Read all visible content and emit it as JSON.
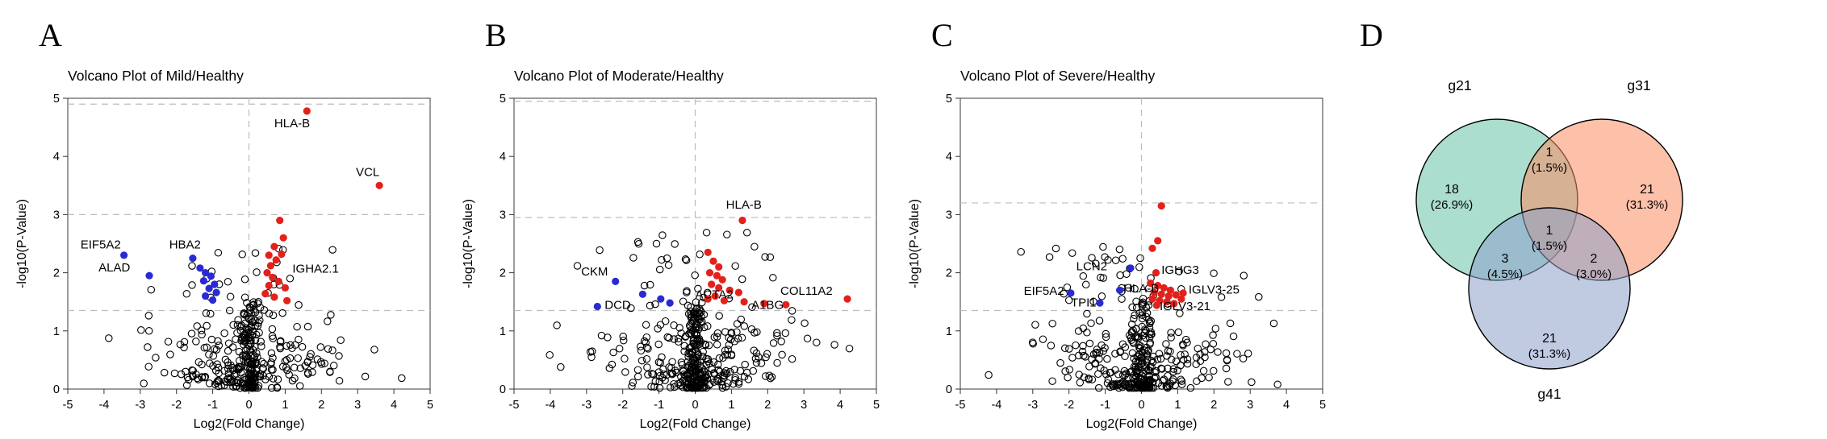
{
  "chart_data": [
    {
      "type": "scatter",
      "subtype": "volcano",
      "label": "A",
      "title": "Volcano Plot of Mild/Healthy",
      "xlabel": "Log2(Fold Change)",
      "ylabel": "-log10(P-Value)",
      "xlim": [
        -5,
        5
      ],
      "ylim": [
        0,
        5
      ],
      "xticks": [
        -5,
        -4,
        -3,
        -2,
        -1,
        0,
        1,
        2,
        3,
        4,
        5
      ],
      "yticks": [
        0,
        1,
        2,
        3,
        4,
        5
      ],
      "threshold_lines_y": [
        4.9,
        3.0,
        1.35
      ],
      "threshold_line_x": 0,
      "colors": {
        "up": "#e3211b",
        "down": "#2a2ad4",
        "background": "#000000",
        "grid": "#bdbdbd"
      },
      "up_points": [
        [
          1.6,
          4.78
        ],
        [
          3.6,
          3.5
        ],
        [
          0.85,
          2.9
        ],
        [
          0.95,
          2.6
        ],
        [
          0.7,
          2.45
        ],
        [
          0.9,
          2.32
        ],
        [
          0.55,
          2.3
        ],
        [
          0.75,
          2.22
        ],
        [
          0.6,
          2.12
        ],
        [
          0.5,
          2.0
        ],
        [
          0.65,
          1.92
        ],
        [
          0.82,
          1.85
        ],
        [
          0.55,
          1.78
        ],
        [
          1.0,
          1.74
        ],
        [
          0.45,
          1.64
        ],
        [
          0.7,
          1.58
        ],
        [
          1.05,
          1.52
        ]
      ],
      "down_points": [
        [
          -3.45,
          2.3
        ],
        [
          -1.55,
          2.25
        ],
        [
          -2.75,
          1.95
        ],
        [
          -1.35,
          2.08
        ],
        [
          -1.2,
          2.0
        ],
        [
          -1.05,
          1.94
        ],
        [
          -1.25,
          1.86
        ],
        [
          -0.95,
          1.8
        ],
        [
          -1.1,
          1.73
        ],
        [
          -0.9,
          1.66
        ],
        [
          -1.2,
          1.6
        ],
        [
          -1.0,
          1.53
        ]
      ],
      "gene_labels": [
        {
          "text": "HLA-B",
          "x": 0.7,
          "y": 4.5,
          "anchor": "start"
        },
        {
          "text": "VCL",
          "x": 2.95,
          "y": 3.66,
          "anchor": "start"
        },
        {
          "text": "EIF5A2",
          "x": -4.65,
          "y": 2.42,
          "anchor": "start"
        },
        {
          "text": "HBA2",
          "x": -2.2,
          "y": 2.42,
          "anchor": "start"
        },
        {
          "text": "ALAD",
          "x": -4.15,
          "y": 2.02,
          "anchor": "start"
        },
        {
          "text": "IGHA2.1",
          "x": 1.2,
          "y": 2.0,
          "anchor": "start"
        }
      ],
      "background": {
        "count": 380,
        "seed": 7,
        "ymax": 2.45
      }
    },
    {
      "type": "scatter",
      "subtype": "volcano",
      "label": "B",
      "title": "Volcano Plot of Moderate/Healthy",
      "xlabel": "Log2(Fold Change)",
      "ylabel": "-log10(P-Value)",
      "xlim": [
        -5,
        5
      ],
      "ylim": [
        0,
        5
      ],
      "xticks": [
        -5,
        -4,
        -3,
        -2,
        -1,
        0,
        1,
        2,
        3,
        4,
        5
      ],
      "yticks": [
        0,
        1,
        2,
        3,
        4,
        5
      ],
      "threshold_lines_y": [
        4.95,
        2.95,
        1.35
      ],
      "threshold_line_x": 0,
      "colors": {
        "up": "#e3211b",
        "down": "#2a2ad4",
        "background": "#000000",
        "grid": "#bdbdbd"
      },
      "up_points": [
        [
          1.3,
          2.9
        ],
        [
          0.35,
          2.35
        ],
        [
          0.5,
          2.2
        ],
        [
          0.65,
          2.1
        ],
        [
          0.4,
          2.0
        ],
        [
          0.6,
          1.95
        ],
        [
          0.75,
          1.88
        ],
        [
          0.45,
          1.8
        ],
        [
          0.65,
          1.74
        ],
        [
          0.95,
          1.7
        ],
        [
          1.2,
          1.66
        ],
        [
          0.55,
          1.6
        ],
        [
          0.35,
          1.55
        ],
        [
          0.8,
          1.52
        ],
        [
          1.35,
          1.5
        ],
        [
          1.9,
          1.47
        ],
        [
          2.5,
          1.45
        ],
        [
          4.2,
          1.55
        ]
      ],
      "down_points": [
        [
          -2.2,
          1.85
        ],
        [
          -1.45,
          1.63
        ],
        [
          -0.95,
          1.55
        ],
        [
          -2.7,
          1.42
        ],
        [
          -0.7,
          1.48
        ]
      ],
      "gene_labels": [
        {
          "text": "HLA-B",
          "x": 0.85,
          "y": 3.1,
          "anchor": "start"
        },
        {
          "text": "CKM",
          "x": -3.15,
          "y": 1.95,
          "anchor": "start"
        },
        {
          "text": "ACTA2",
          "x": 0.0,
          "y": 1.56,
          "anchor": "start"
        },
        {
          "text": "DCD",
          "x": -2.5,
          "y": 1.38,
          "anchor": "start"
        },
        {
          "text": "COL11A2",
          "x": 2.35,
          "y": 1.62,
          "anchor": "start"
        },
        {
          "text": "A1BG",
          "x": 1.55,
          "y": 1.38,
          "anchor": "start"
        }
      ],
      "background": {
        "count": 420,
        "seed": 13,
        "ymax": 2.75
      }
    },
    {
      "type": "scatter",
      "subtype": "volcano",
      "label": "C",
      "title": "Volcano Plot of Severe/Healthy",
      "xlabel": "Log2(Fold Change)",
      "ylabel": "-log10(P-Value)",
      "xlim": [
        -5,
        5
      ],
      "ylim": [
        0,
        5
      ],
      "xticks": [
        -5,
        -4,
        -3,
        -2,
        -1,
        0,
        1,
        2,
        3,
        4,
        5
      ],
      "yticks": [
        0,
        1,
        2,
        3,
        4,
        5
      ],
      "threshold_lines_y": [
        3.2,
        1.35
      ],
      "threshold_line_x": 0,
      "colors": {
        "up": "#e3211b",
        "down": "#2a2ad4",
        "background": "#000000",
        "grid": "#bdbdbd"
      },
      "up_points": [
        [
          0.55,
          3.15
        ],
        [
          0.45,
          2.55
        ],
        [
          0.3,
          2.42
        ],
        [
          0.4,
          2.0
        ],
        [
          0.25,
          1.82
        ],
        [
          0.45,
          1.78
        ],
        [
          0.62,
          1.74
        ],
        [
          0.8,
          1.7
        ],
        [
          0.35,
          1.66
        ],
        [
          0.55,
          1.63
        ],
        [
          0.75,
          1.6
        ],
        [
          0.95,
          1.62
        ],
        [
          1.15,
          1.65
        ],
        [
          1.1,
          1.55
        ],
        [
          0.3,
          1.55
        ],
        [
          0.5,
          1.52
        ],
        [
          0.7,
          1.5
        ],
        [
          0.9,
          1.47
        ],
        [
          0.42,
          1.44
        ]
      ],
      "down_points": [
        [
          -0.3,
          2.08
        ],
        [
          -1.95,
          1.65
        ],
        [
          -1.15,
          1.48
        ],
        [
          -0.6,
          1.7
        ]
      ],
      "gene_labels": [
        {
          "text": "LCN2",
          "x": -1.8,
          "y": 2.04,
          "anchor": "start"
        },
        {
          "text": "IGHG3",
          "x": 0.55,
          "y": 1.98,
          "anchor": "start"
        },
        {
          "text": "EIF5A2",
          "x": -3.25,
          "y": 1.62,
          "anchor": "start"
        },
        {
          "text": "TPI1",
          "x": -1.95,
          "y": 1.42,
          "anchor": "start"
        },
        {
          "text": "HLA-B",
          "x": -0.5,
          "y": 1.66,
          "anchor": "start"
        },
        {
          "text": "IGLV3-25",
          "x": 1.3,
          "y": 1.64,
          "anchor": "start"
        },
        {
          "text": "IGLV3-21",
          "x": 0.5,
          "y": 1.36,
          "anchor": "start"
        }
      ],
      "background": {
        "count": 390,
        "seed": 21,
        "ymax": 2.5
      }
    },
    {
      "type": "venn",
      "label": "D",
      "sets": [
        {
          "name": "g21",
          "color": "#66C2A5"
        },
        {
          "name": "g31",
          "color": "#FC8D62"
        },
        {
          "name": "g41",
          "color": "#8DA0CB"
        }
      ],
      "regions": [
        {
          "id": "g21",
          "count": "18",
          "pct": "(26.9%)"
        },
        {
          "id": "g31",
          "count": "21",
          "pct": "(31.3%)"
        },
        {
          "id": "g41",
          "count": "21",
          "pct": "(31.3%)"
        },
        {
          "id": "g21_g31",
          "count": "1",
          "pct": "(1.5%)"
        },
        {
          "id": "g21_g41",
          "count": "3",
          "pct": "(4.5%)"
        },
        {
          "id": "g31_g41",
          "count": "2",
          "pct": "(3.0%)"
        },
        {
          "id": "center",
          "count": "1",
          "pct": "(1.5%)"
        }
      ]
    }
  ]
}
